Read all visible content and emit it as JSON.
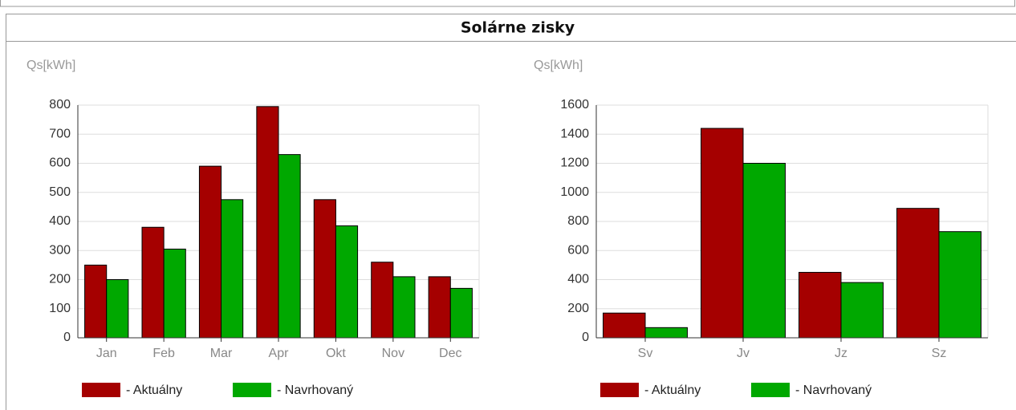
{
  "header": {
    "title": "Solárne zisky"
  },
  "chart_data": [
    {
      "type": "bar",
      "y_label": "Qs[kWh]",
      "categories": [
        "Jan",
        "Feb",
        "Mar",
        "Apr",
        "Okt",
        "Nov",
        "Dec"
      ],
      "series": [
        {
          "name": "- Aktuálny",
          "color": "#a50000",
          "values": [
            250,
            380,
            590,
            795,
            475,
            260,
            210
          ]
        },
        {
          "name": "- Navrhovaný",
          "color": "#00a800",
          "values": [
            200,
            305,
            475,
            630,
            385,
            210,
            170
          ]
        }
      ],
      "ylim": [
        0,
        800
      ],
      "yticks": [
        0,
        100,
        200,
        300,
        400,
        500,
        600,
        700,
        800
      ],
      "grid": true,
      "legend": "bottom"
    },
    {
      "type": "bar",
      "y_label": "Qs[kWh]",
      "categories": [
        "Sv",
        "Jv",
        "Jz",
        "Sz"
      ],
      "series": [
        {
          "name": "- Aktuálny",
          "color": "#a50000",
          "values": [
            170,
            1440,
            450,
            890
          ]
        },
        {
          "name": "- Navrhovaný",
          "color": "#00a800",
          "values": [
            70,
            1200,
            380,
            730
          ]
        }
      ],
      "ylim": [
        0,
        1600
      ],
      "yticks": [
        0,
        200,
        400,
        600,
        800,
        1000,
        1200,
        1400,
        1600
      ],
      "grid": true,
      "legend": "bottom"
    }
  ]
}
